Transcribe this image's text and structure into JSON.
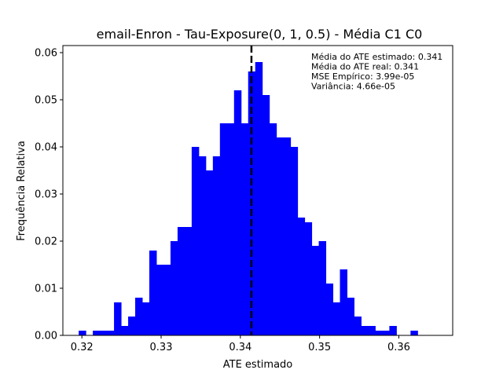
{
  "chart_data": {
    "type": "bar",
    "title": "email-Enron - Tau-Exposure(0, 1, 0.5) - Média C1 C0",
    "xlabel": "ATE estimado",
    "ylabel": "Frequência Relativa",
    "xlim": [
      0.3176,
      0.3668
    ],
    "ylim": [
      0.0,
      0.0615
    ],
    "x_ticks": [
      0.32,
      0.33,
      0.34,
      0.35,
      0.36
    ],
    "x_tick_labels": [
      "0.32",
      "0.33",
      "0.34",
      "0.35",
      "0.36"
    ],
    "y_ticks": [
      0.0,
      0.01,
      0.02,
      0.03,
      0.04,
      0.05,
      0.06
    ],
    "y_tick_labels": [
      "0.00",
      "0.01",
      "0.02",
      "0.03",
      "0.04",
      "0.05",
      "0.06"
    ],
    "bar_color": "#0000ff",
    "bins": {
      "start": 0.3196,
      "width": 0.000891,
      "values": [
        0.001,
        0.0,
        0.001,
        0.001,
        0.001,
        0.007,
        0.002,
        0.004,
        0.008,
        0.007,
        0.018,
        0.015,
        0.015,
        0.02,
        0.023,
        0.023,
        0.04,
        0.038,
        0.035,
        0.038,
        0.045,
        0.045,
        0.052,
        0.045,
        0.056,
        0.058,
        0.051,
        0.045,
        0.042,
        0.042,
        0.04,
        0.025,
        0.024,
        0.019,
        0.02,
        0.011,
        0.007,
        0.014,
        0.008,
        0.004,
        0.002,
        0.002,
        0.001,
        0.001,
        0.002,
        0.0,
        0.0,
        0.001
      ]
    },
    "vline": {
      "x": 0.3414,
      "style": "dashed",
      "color": "#000000"
    },
    "annotations": [
      "Média do ATE estimado: 0.341",
      "Média do ATE real: 0.341",
      "MSE Empírico: 3.99e-05",
      "Variância: 4.66e-05"
    ],
    "annotation_placement": "top-right",
    "grid": false,
    "legend": false
  }
}
